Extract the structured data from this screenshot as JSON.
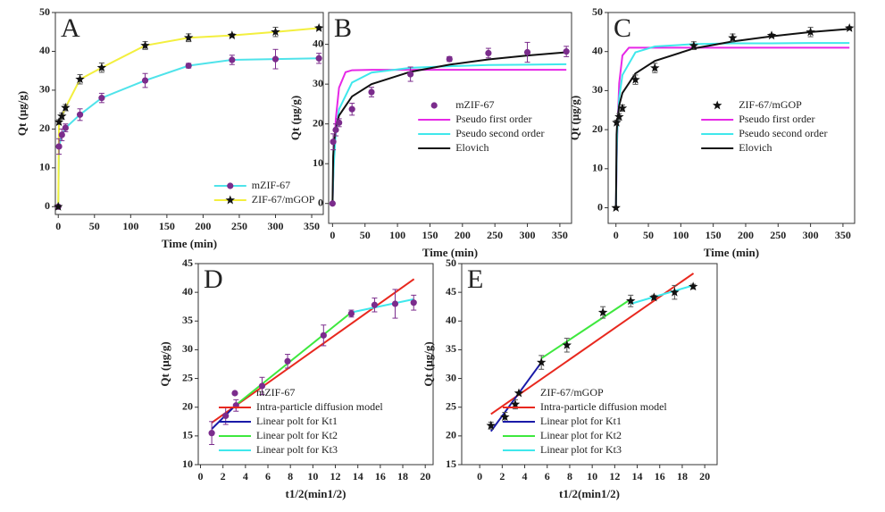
{
  "chart_data": [
    {
      "type": "line",
      "label": "A",
      "xlabel": "Time (min)",
      "ylabel": "Qt (μg/g)",
      "xlim": [
        -4,
        366
      ],
      "ylim": [
        -2,
        50
      ],
      "xticks": [
        0,
        50,
        100,
        150,
        200,
        250,
        300,
        350
      ],
      "yticks": [
        0,
        10,
        20,
        30,
        40,
        50
      ],
      "legend": "lower right",
      "x": [
        0,
        1,
        5,
        10,
        30,
        60,
        120,
        180,
        240,
        300,
        360
      ],
      "series": [
        {
          "name": "mZIF-67",
          "style": "line+markers",
          "color": "#4fe3ea",
          "marker": "circle",
          "marker_color": "#7b2c8c",
          "values": [
            0,
            15.5,
            18.5,
            20.3,
            23.7,
            28,
            32.5,
            36.3,
            37.8,
            38,
            38.2
          ],
          "errors": [
            0,
            2,
            1.5,
            1,
            1.5,
            1.2,
            1.8,
            0.6,
            1.2,
            2.5,
            1.3
          ]
        },
        {
          "name": "ZIF-67/mGOP",
          "style": "line+markers",
          "color": "#f3ef3e",
          "marker": "star",
          "marker_color": "#111111",
          "values": [
            0,
            21.8,
            23.3,
            25.5,
            32.8,
            35.8,
            41.5,
            43.5,
            44.1,
            45,
            46
          ],
          "errors": [
            0,
            0.6,
            0.8,
            0.8,
            1.2,
            1.2,
            1,
            1,
            0.4,
            1.2,
            0.4
          ]
        }
      ]
    },
    {
      "type": "line",
      "label": "B",
      "xlabel": "Time (min)",
      "ylabel": "Qt (μg/g)",
      "xlim": [
        -6,
        368
      ],
      "ylim": [
        -5,
        48
      ],
      "xticks": [
        0,
        50,
        100,
        150,
        200,
        250,
        300,
        350
      ],
      "yticks": [
        0,
        10,
        20,
        30,
        40
      ],
      "legend": "center right",
      "x": [
        0,
        1,
        5,
        10,
        30,
        60,
        120,
        180,
        240,
        300,
        360
      ],
      "series": [
        {
          "name": "mZIF-67",
          "style": "markers",
          "marker": "circle",
          "marker_color": "#7b2c8c",
          "values": [
            0,
            15.5,
            18.5,
            20.3,
            23.7,
            28,
            32.5,
            36.3,
            37.8,
            38,
            38.2
          ],
          "errors": [
            0,
            2,
            1.5,
            1,
            1.5,
            1.2,
            1.8,
            0.6,
            1.2,
            2.5,
            1.3
          ]
        },
        {
          "name": "Pseudo first order",
          "style": "line",
          "color": "#e628e6",
          "x": [
            0,
            1,
            2,
            5,
            10,
            20,
            30,
            60,
            120,
            180,
            240,
            300,
            360
          ],
          "values": [
            0,
            6.1,
            11.1,
            21.2,
            29.1,
            33,
            33.5,
            33.6,
            33.6,
            33.6,
            33.6,
            33.6,
            33.6
          ]
        },
        {
          "name": "Pseudo second order",
          "style": "line",
          "color": "#3fe8ec",
          "x": [
            0,
            1,
            2,
            5,
            10,
            30,
            60,
            120,
            180,
            240,
            300,
            360
          ],
          "values": [
            0,
            5.9,
            10.1,
            17.75,
            23.7,
            30.4,
            32.9,
            34.1,
            34.5,
            34.8,
            34.9,
            35
          ]
        },
        {
          "name": "Elovich",
          "style": "line",
          "color": "#111111",
          "x": [
            0,
            1,
            2,
            5,
            10,
            30,
            60,
            120,
            180,
            240,
            300,
            360
          ],
          "values": [
            0,
            11.85,
            14.9,
            19,
            22.1,
            26.9,
            30,
            33.1,
            34.9,
            36.2,
            37.2,
            38
          ]
        }
      ]
    },
    {
      "type": "line",
      "label": "C",
      "xlabel": "Time (min)",
      "ylabel": "Qt (μg/g)",
      "xlim": [
        -12,
        368
      ],
      "ylim": [
        -4,
        50
      ],
      "xticks": [
        0,
        50,
        100,
        150,
        200,
        250,
        300,
        350
      ],
      "yticks": [
        0,
        10,
        20,
        30,
        40,
        50
      ],
      "legend": "center right",
      "x": [
        0,
        1,
        5,
        10,
        30,
        60,
        120,
        180,
        240,
        300,
        360
      ],
      "series": [
        {
          "name": "ZIF-67/mGOP",
          "style": "markers",
          "marker": "star",
          "marker_color": "#111111",
          "values": [
            0,
            21.8,
            23.3,
            25.5,
            32.8,
            35.8,
            41.5,
            43.5,
            44.1,
            45,
            46
          ],
          "errors": [
            0,
            0.6,
            0.8,
            0.8,
            1.2,
            1.2,
            1,
            1,
            0.4,
            1.2,
            0.4
          ]
        },
        {
          "name": "Pseudo first order",
          "style": "line",
          "color": "#e628e6",
          "x": [
            0,
            1,
            2,
            5,
            10,
            20,
            30,
            60,
            120,
            180,
            240,
            300,
            360
          ],
          "values": [
            0,
            10.6,
            18.5,
            31.9,
            39,
            41,
            41,
            41,
            41,
            41,
            41,
            41,
            41
          ]
        },
        {
          "name": "Pseudo second order",
          "style": "line",
          "color": "#3fe8ec",
          "x": [
            0,
            1,
            2,
            5,
            10,
            30,
            60,
            120,
            180,
            240,
            300,
            360
          ],
          "values": [
            0,
            12.1,
            19.3,
            28.3,
            34,
            39.8,
            41.3,
            41.9,
            42.1,
            42.1,
            42.2,
            42.2
          ]
        },
        {
          "name": "Elovich",
          "style": "line",
          "color": "#111111",
          "x": [
            0,
            1,
            2,
            5,
            10,
            30,
            60,
            120,
            180,
            240,
            300,
            360
          ],
          "values": [
            0,
            18.8,
            22,
            26.2,
            29.4,
            34.4,
            37.6,
            40.8,
            42.6,
            43.9,
            45,
            45.8
          ]
        }
      ]
    },
    {
      "type": "line",
      "label": "D",
      "xlabel": "t1/2(min1/2)",
      "ylabel": "Qt (μg/g)",
      "xlim": [
        -0.2,
        20.7
      ],
      "ylim": [
        10,
        45
      ],
      "xticks": [
        0,
        2,
        4,
        6,
        8,
        10,
        12,
        14,
        16,
        18,
        20
      ],
      "yticks": [
        10,
        15,
        20,
        25,
        30,
        35,
        40,
        45
      ],
      "legend": "lower right",
      "x": [
        1,
        2.24,
        3.16,
        5.48,
        7.75,
        10.95,
        13.42,
        15.49,
        17.32,
        18.97
      ],
      "series": [
        {
          "name": "mZIF-67",
          "style": "markers",
          "marker": "circle",
          "marker_color": "#7b2c8c",
          "values": [
            15.5,
            18.5,
            20.3,
            23.7,
            28,
            32.5,
            36.3,
            37.8,
            38,
            38.2
          ],
          "errors": [
            2,
            1.5,
            1,
            1.5,
            1.2,
            1.8,
            0.6,
            1.2,
            2.5,
            1.3
          ]
        },
        {
          "name": "Intra-particle diffusion model",
          "style": "line",
          "color": "#e8281e",
          "x": [
            1,
            19
          ],
          "values": [
            17.3,
            42.3
          ]
        },
        {
          "name": "Linear polt for Kt1",
          "style": "line",
          "color": "#1a1aa8",
          "x": [
            1,
            3.16
          ],
          "values": [
            16.2,
            20.4
          ]
        },
        {
          "name": "Linear polt for Kt2",
          "style": "line",
          "color": "#3ee83e",
          "x": [
            3.16,
            13.42
          ],
          "values": [
            20.4,
            36.5
          ]
        },
        {
          "name": "Linear polt for Kt3",
          "style": "line",
          "color": "#3fe8ec",
          "x": [
            13.42,
            18.97
          ],
          "values": [
            36.5,
            38.8
          ]
        }
      ]
    },
    {
      "type": "line",
      "label": "E",
      "xlabel": "t1/2(min1/2)",
      "ylabel": "Qt (μg/g)",
      "xlim": [
        -1.6,
        21.1
      ],
      "ylim": [
        15,
        50
      ],
      "xticks": [
        0,
        2,
        4,
        6,
        8,
        10,
        12,
        14,
        16,
        18,
        20
      ],
      "yticks": [
        15,
        20,
        25,
        30,
        35,
        40,
        45,
        50
      ],
      "legend": "lower right",
      "x": [
        1,
        2.24,
        3.16,
        5.48,
        7.75,
        10.95,
        13.42,
        15.49,
        17.32,
        18.97
      ],
      "series": [
        {
          "name": "ZIF-67/mGOP",
          "style": "markers",
          "marker": "star",
          "marker_color": "#111111",
          "values": [
            21.8,
            23.3,
            25.5,
            32.8,
            35.8,
            41.5,
            43.5,
            44.1,
            45,
            46
          ],
          "errors": [
            0.6,
            0.8,
            0.8,
            1.2,
            1.2,
            1,
            1,
            0.4,
            1.2,
            0.4
          ]
        },
        {
          "name": "Intra-particle diffusion model",
          "style": "line",
          "color": "#e8281e",
          "x": [
            1,
            19
          ],
          "values": [
            23.8,
            48.3
          ]
        },
        {
          "name": "Linear plot for Kt1",
          "style": "line",
          "color": "#1a1aa8",
          "x": [
            1,
            5.48
          ],
          "values": [
            20.8,
            32.8
          ]
        },
        {
          "name": "Linear plot for Kt2",
          "style": "line",
          "color": "#3ee83e",
          "x": [
            5.48,
            13.42
          ],
          "values": [
            33.5,
            43.8
          ]
        },
        {
          "name": "Linear plot for Kt3",
          "style": "line",
          "color": "#3fe8ec",
          "x": [
            13.42,
            18.97
          ],
          "values": [
            43,
            46.2
          ]
        }
      ]
    }
  ]
}
